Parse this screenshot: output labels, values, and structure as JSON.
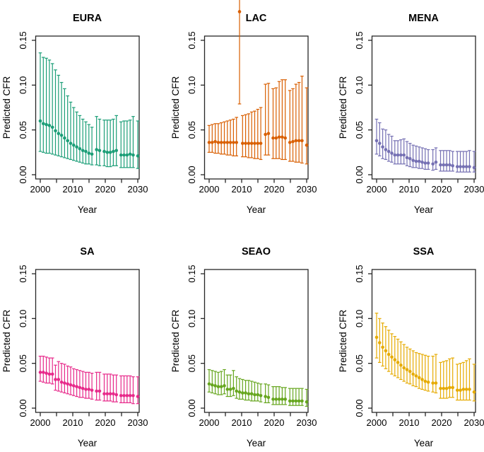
{
  "figure": {
    "xlabel": "Year",
    "ylabel": "Predicted CFR",
    "xlim": [
      2000,
      2030
    ],
    "ylim": [
      0,
      0.15
    ],
    "xtick_labels": [
      "2000",
      "2010",
      "2020",
      "2030"
    ],
    "xtick_values": [
      2000,
      2010,
      2020,
      2030
    ],
    "xtick_minor_values": [
      2000,
      2005,
      2010,
      2015,
      2020,
      2025,
      2030
    ],
    "ytick_labels": [
      "0.00",
      "0.05",
      "0.10",
      "0.15"
    ],
    "ytick_values": [
      0,
      0.05,
      0.1,
      0.15
    ],
    "years": [
      2000,
      2001,
      2002,
      2003,
      2004,
      2005,
      2006,
      2007,
      2008,
      2009,
      2010,
      2011,
      2012,
      2013,
      2014,
      2015,
      2016,
      2017,
      2018,
      2019,
      2020,
      2021,
      2022,
      2023,
      2024,
      2025,
      2026,
      2027,
      2028,
      2029,
      2030
    ],
    "group_breaks_after": [
      2017,
      2019,
      2024,
      2029
    ],
    "grid": "off",
    "legend": "none"
  },
  "chart_data": [
    {
      "type": "scatter",
      "style": "points-with-error-bars",
      "title": "EURA",
      "color": "#1b9e77",
      "mid": [
        0.06,
        0.057,
        0.056,
        0.055,
        0.053,
        0.049,
        0.046,
        0.044,
        0.041,
        0.038,
        0.035,
        0.033,
        0.031,
        0.029,
        0.027,
        0.026,
        0.024,
        0.023,
        0.028,
        0.027,
        0.026,
        0.025,
        0.025,
        0.026,
        0.027,
        0.022,
        0.022,
        0.022,
        0.023,
        0.022,
        0.021
      ],
      "lo": [
        0.026,
        0.025,
        0.024,
        0.024,
        0.023,
        0.022,
        0.021,
        0.02,
        0.019,
        0.018,
        0.017,
        0.016,
        0.015,
        0.014,
        0.013,
        0.012,
        0.012,
        0.011,
        0.011,
        0.01,
        0.01,
        0.009,
        0.009,
        0.01,
        0.01,
        0.008,
        0.008,
        0.008,
        0.008,
        0.008,
        0.007
      ],
      "hi": [
        0.136,
        0.131,
        0.13,
        0.128,
        0.124,
        0.117,
        0.111,
        0.103,
        0.096,
        0.088,
        0.081,
        0.075,
        0.07,
        0.066,
        0.062,
        0.059,
        0.056,
        0.053,
        0.065,
        0.062,
        0.061,
        0.061,
        0.061,
        0.062,
        0.066,
        0.059,
        0.06,
        0.06,
        0.061,
        0.065,
        0.06
      ]
    },
    {
      "type": "scatter",
      "style": "points-with-error-bars",
      "title": "LAC",
      "color": "#d95f02",
      "note": "2010 estimate and upper interval extend above the plot region (clipped at figure edge)",
      "mid": [
        0.036,
        0.036,
        0.037,
        0.036,
        0.036,
        0.036,
        0.036,
        0.036,
        0.036,
        0.036,
        0.182,
        0.035,
        0.035,
        0.035,
        0.035,
        0.035,
        0.035,
        0.035,
        0.045,
        0.046,
        0.041,
        0.041,
        0.042,
        0.042,
        0.041,
        0.036,
        0.037,
        0.038,
        0.038,
        0.038,
        0.033
      ],
      "lo": [
        0.025,
        0.025,
        0.024,
        0.024,
        0.023,
        0.023,
        0.022,
        0.022,
        0.021,
        0.021,
        0.079,
        0.02,
        0.02,
        0.019,
        0.019,
        0.018,
        0.018,
        0.017,
        0.022,
        0.022,
        0.018,
        0.018,
        0.018,
        0.017,
        0.017,
        0.015,
        0.015,
        0.014,
        0.014,
        0.013,
        0.012
      ],
      "hi": [
        0.055,
        0.056,
        0.057,
        0.057,
        0.058,
        0.059,
        0.06,
        0.061,
        0.062,
        0.064,
        0.21,
        0.066,
        0.067,
        0.068,
        0.07,
        0.071,
        0.073,
        0.075,
        0.101,
        0.102,
        0.096,
        0.097,
        0.104,
        0.106,
        0.106,
        0.094,
        0.096,
        0.101,
        0.103,
        0.11,
        0.097
      ]
    },
    {
      "type": "scatter",
      "style": "points-with-error-bars",
      "title": "MENA",
      "color": "#7570b3",
      "mid": [
        0.038,
        0.035,
        0.031,
        0.028,
        0.026,
        0.024,
        0.022,
        0.022,
        0.022,
        0.022,
        0.019,
        0.018,
        0.016,
        0.015,
        0.015,
        0.014,
        0.013,
        0.013,
        0.012,
        0.014,
        0.011,
        0.011,
        0.011,
        0.011,
        0.01,
        0.009,
        0.009,
        0.009,
        0.009,
        0.009,
        0.008
      ],
      "lo": [
        0.023,
        0.021,
        0.018,
        0.017,
        0.015,
        0.014,
        0.012,
        0.012,
        0.012,
        0.012,
        0.01,
        0.009,
        0.008,
        0.008,
        0.007,
        0.007,
        0.006,
        0.006,
        0.005,
        0.006,
        0.004,
        0.004,
        0.004,
        0.004,
        0.004,
        0.003,
        0.003,
        0.003,
        0.003,
        0.003,
        0.003
      ],
      "hi": [
        0.062,
        0.058,
        0.051,
        0.05,
        0.045,
        0.043,
        0.038,
        0.038,
        0.039,
        0.04,
        0.037,
        0.035,
        0.033,
        0.032,
        0.031,
        0.03,
        0.029,
        0.028,
        0.028,
        0.03,
        0.027,
        0.027,
        0.027,
        0.027,
        0.026,
        0.026,
        0.026,
        0.026,
        0.026,
        0.027,
        0.026
      ]
    },
    {
      "type": "scatter",
      "style": "points-with-error-bars",
      "title": "SA",
      "color": "#e7298a",
      "mid": [
        0.04,
        0.04,
        0.039,
        0.038,
        0.038,
        0.032,
        0.032,
        0.029,
        0.028,
        0.027,
        0.026,
        0.025,
        0.024,
        0.023,
        0.022,
        0.021,
        0.021,
        0.02,
        0.019,
        0.019,
        0.016,
        0.016,
        0.016,
        0.016,
        0.015,
        0.014,
        0.014,
        0.014,
        0.014,
        0.014,
        0.013
      ],
      "lo": [
        0.03,
        0.029,
        0.028,
        0.028,
        0.027,
        0.02,
        0.019,
        0.018,
        0.017,
        0.016,
        0.015,
        0.014,
        0.013,
        0.012,
        0.012,
        0.011,
        0.011,
        0.01,
        0.009,
        0.009,
        0.008,
        0.008,
        0.008,
        0.007,
        0.007,
        0.006,
        0.006,
        0.006,
        0.006,
        0.005,
        0.005
      ],
      "hi": [
        0.058,
        0.058,
        0.057,
        0.056,
        0.056,
        0.048,
        0.052,
        0.05,
        0.049,
        0.047,
        0.046,
        0.044,
        0.043,
        0.042,
        0.041,
        0.04,
        0.04,
        0.039,
        0.04,
        0.04,
        0.038,
        0.038,
        0.038,
        0.037,
        0.037,
        0.036,
        0.036,
        0.036,
        0.036,
        0.035,
        0.035
      ]
    },
    {
      "type": "scatter",
      "style": "points-with-error-bars",
      "title": "SEAO",
      "color": "#66a61e",
      "mid": [
        0.027,
        0.026,
        0.025,
        0.024,
        0.024,
        0.025,
        0.021,
        0.021,
        0.022,
        0.019,
        0.018,
        0.017,
        0.017,
        0.016,
        0.016,
        0.015,
        0.015,
        0.014,
        0.013,
        0.012,
        0.01,
        0.01,
        0.01,
        0.01,
        0.01,
        0.008,
        0.008,
        0.008,
        0.008,
        0.008,
        0.007
      ],
      "lo": [
        0.018,
        0.017,
        0.016,
        0.015,
        0.015,
        0.016,
        0.013,
        0.013,
        0.014,
        0.011,
        0.01,
        0.01,
        0.009,
        0.009,
        0.008,
        0.008,
        0.008,
        0.007,
        0.006,
        0.006,
        0.004,
        0.004,
        0.004,
        0.004,
        0.004,
        0.003,
        0.003,
        0.003,
        0.003,
        0.003,
        0.002
      ],
      "hi": [
        0.043,
        0.042,
        0.041,
        0.04,
        0.041,
        0.043,
        0.037,
        0.037,
        0.042,
        0.035,
        0.033,
        0.032,
        0.031,
        0.031,
        0.03,
        0.029,
        0.028,
        0.027,
        0.027,
        0.026,
        0.024,
        0.024,
        0.024,
        0.023,
        0.023,
        0.022,
        0.022,
        0.022,
        0.022,
        0.022,
        0.021
      ]
    },
    {
      "type": "scatter",
      "style": "points-with-error-bars",
      "title": "SSA",
      "color": "#e6ab02",
      "mid": [
        0.079,
        0.073,
        0.068,
        0.064,
        0.06,
        0.057,
        0.054,
        0.051,
        0.048,
        0.045,
        0.043,
        0.041,
        0.038,
        0.036,
        0.034,
        0.032,
        0.03,
        0.029,
        0.028,
        0.028,
        0.022,
        0.022,
        0.022,
        0.023,
        0.023,
        0.02,
        0.02,
        0.021,
        0.021,
        0.021,
        0.018
      ],
      "lo": [
        0.056,
        0.051,
        0.047,
        0.044,
        0.041,
        0.038,
        0.036,
        0.034,
        0.032,
        0.03,
        0.028,
        0.027,
        0.025,
        0.024,
        0.022,
        0.021,
        0.02,
        0.019,
        0.018,
        0.017,
        0.011,
        0.011,
        0.011,
        0.012,
        0.012,
        0.009,
        0.009,
        0.009,
        0.009,
        0.009,
        0.008
      ],
      "hi": [
        0.106,
        0.1,
        0.095,
        0.091,
        0.087,
        0.083,
        0.08,
        0.077,
        0.074,
        0.071,
        0.068,
        0.066,
        0.064,
        0.062,
        0.061,
        0.06,
        0.059,
        0.058,
        0.058,
        0.06,
        0.051,
        0.052,
        0.053,
        0.055,
        0.056,
        0.049,
        0.05,
        0.051,
        0.053,
        0.055,
        0.049
      ]
    }
  ]
}
